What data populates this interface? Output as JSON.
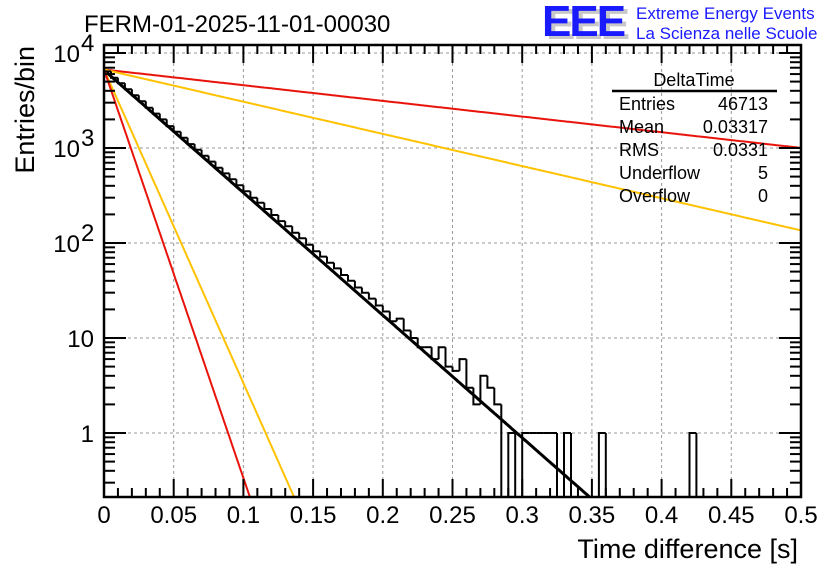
{
  "chart_data": {
    "type": "bar",
    "style": "step-histogram",
    "title": "FERM-01-2025-11-01-00030",
    "xlabel": "Time difference [s]",
    "ylabel": "Entries/bin",
    "xlim": [
      0,
      0.5
    ],
    "ylim": [
      0.22,
      11000
    ],
    "yscale": "log",
    "grid": true,
    "bin_width": 0.005,
    "x_ticks": [
      "0",
      "0.05",
      "0.1",
      "0.15",
      "0.2",
      "0.25",
      "0.3",
      "0.35",
      "0.4",
      "0.45",
      "0.5"
    ],
    "x_tick_values": [
      0,
      0.05,
      0.1,
      0.15,
      0.2,
      0.25,
      0.3,
      0.35,
      0.4,
      0.45,
      0.5
    ],
    "y_ticks": [
      {
        "value": 1,
        "base": "1",
        "exp": ""
      },
      {
        "value": 10,
        "base": "10",
        "exp": ""
      },
      {
        "value": 100,
        "base": "10",
        "exp": "2"
      },
      {
        "value": 1000,
        "base": "10",
        "exp": "3"
      },
      {
        "value": 10000,
        "base": "10",
        "exp": "4"
      }
    ],
    "histogram": {
      "name": "DeltaTime",
      "color": "#000000",
      "values": [
        6400,
        5500,
        4800,
        4150,
        3600,
        3100,
        2650,
        2300,
        2000,
        1700,
        1480,
        1280,
        1100,
        960,
        830,
        720,
        620,
        540,
        470,
        405,
        350,
        300,
        265,
        228,
        197,
        170,
        150,
        128,
        112,
        96,
        82,
        72,
        62,
        54,
        46,
        40,
        34,
        30,
        26,
        22,
        19,
        15,
        16,
        12,
        10,
        8,
        8,
        6,
        8,
        5,
        4.5,
        6,
        3,
        2,
        4,
        3,
        2,
        0,
        1,
        0,
        1,
        1,
        1,
        1,
        1,
        0,
        1,
        0,
        0,
        0,
        0,
        1,
        0,
        0,
        0,
        0,
        0,
        0,
        0,
        0,
        0,
        0,
        0,
        0,
        1,
        0,
        0,
        0,
        0,
        0,
        0,
        0,
        0,
        0,
        0,
        0,
        0,
        0,
        0,
        0
      ]
    },
    "series": [
      {
        "name": "fit",
        "color": "#000000",
        "type": "exponential",
        "n0": 6600,
        "rate": 29.7
      },
      {
        "name": "upper-slow",
        "color": "#e8140c",
        "type": "exponential",
        "n0": 6700,
        "rate": 3.8
      },
      {
        "name": "yellow-slow",
        "color": "#ffc200",
        "type": "exponential",
        "n0": 6700,
        "rate": 7.8
      },
      {
        "name": "yellow-fast",
        "color": "#ffc200",
        "type": "exponential",
        "n0": 6700,
        "rate": 76
      },
      {
        "name": "red-fast",
        "color": "#e8140c",
        "type": "exponential",
        "n0": 6700,
        "rate": 99
      }
    ],
    "stats_box": {
      "title": "DeltaTime",
      "rows": [
        {
          "label": "Entries",
          "value": "46713"
        },
        {
          "label": "Mean",
          "value": "0.03317"
        },
        {
          "label": "RMS",
          "value": "0.0331"
        },
        {
          "label": "Underflow",
          "value": "5"
        },
        {
          "label": "Overflow",
          "value": "0"
        }
      ],
      "placement": "top-right"
    }
  },
  "logo": {
    "mark": "EEE",
    "line1": "Extreme Energy Events",
    "line2": "La Scienza nelle Scuole",
    "color": "#1a1aff",
    "shadow_color": "#c8c8c8"
  }
}
